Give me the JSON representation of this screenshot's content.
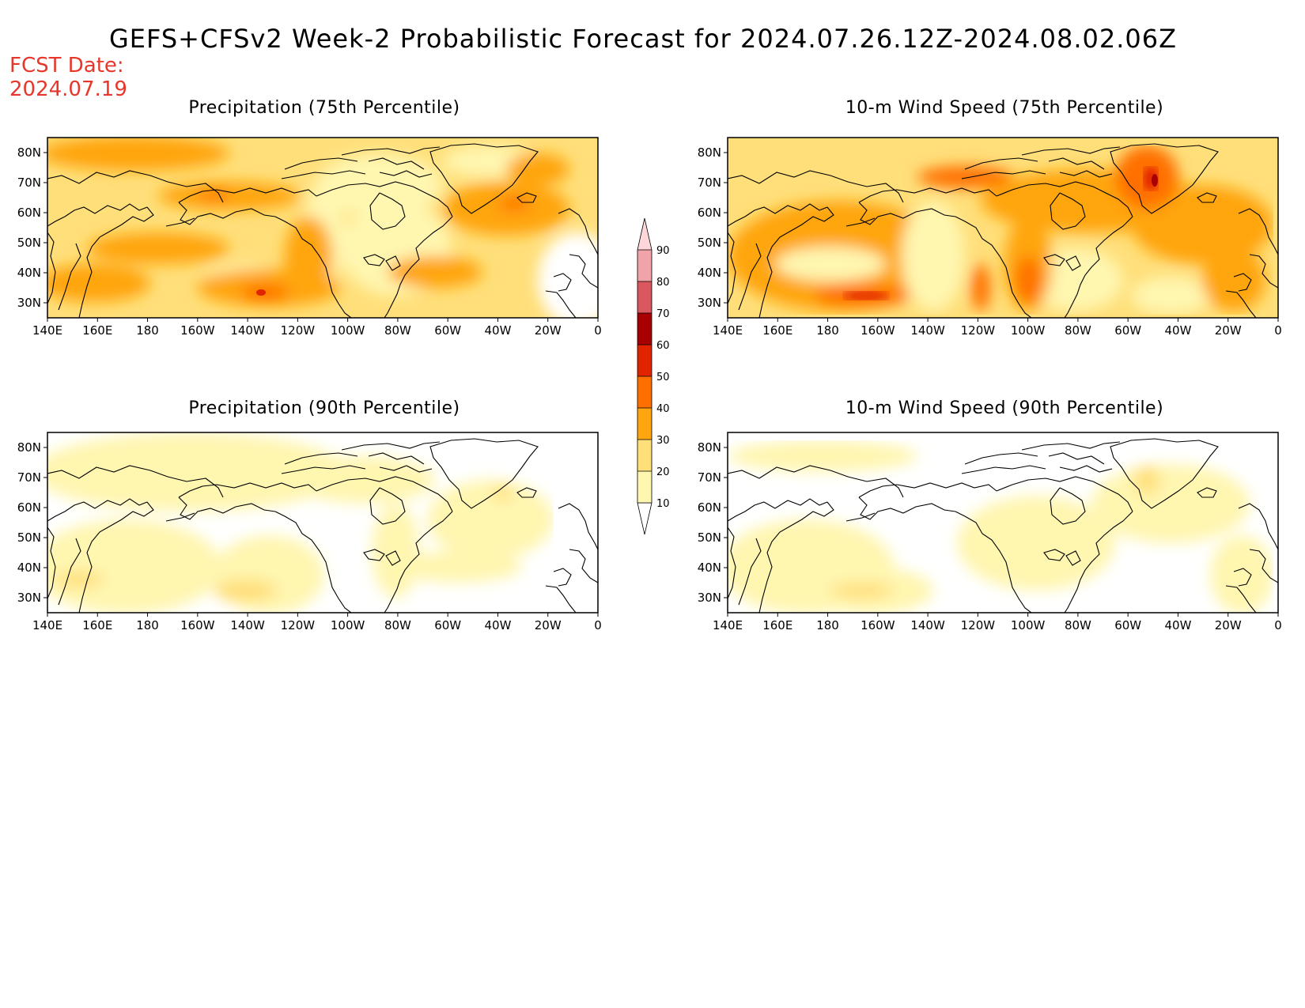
{
  "title": "GEFS+CFSv2 Week-2 Probabilistic Forecast for 2024.07.26.12Z-2024.08.02.06Z",
  "forecast_date": {
    "label": "FCST Date:",
    "value": "2024.07.19"
  },
  "colors": {
    "accent_red": "#e8362b",
    "levels": [
      "#ffffff",
      "#fff6b0",
      "#ffdf7a",
      "#ffa510",
      "#ff6f00",
      "#e02400",
      "#a80000",
      "#d9575e",
      "#f0a3a8",
      "#ffd7da"
    ]
  },
  "axes": {
    "lon_labels": [
      "140E",
      "160E",
      "180",
      "160W",
      "140W",
      "120W",
      "100W",
      "80W",
      "60W",
      "40W",
      "20W",
      "0"
    ],
    "lat_labels": [
      "80N",
      "70N",
      "60N",
      "50N",
      "40N",
      "30N"
    ]
  },
  "colorbar": {
    "ticks": [
      "90",
      "80",
      "70",
      "60",
      "50",
      "40",
      "30",
      "20",
      "10"
    ]
  },
  "panels": [
    {
      "id": "precip75",
      "title": "Precipitation (75th Percentile)"
    },
    {
      "id": "wind75",
      "title": "10-m Wind Speed (75th Percentile)"
    },
    {
      "id": "precip90",
      "title": "Precipitation (90th Percentile)"
    },
    {
      "id": "wind90",
      "title": "10-m Wind Speed (90th Percentile)"
    }
  ]
}
